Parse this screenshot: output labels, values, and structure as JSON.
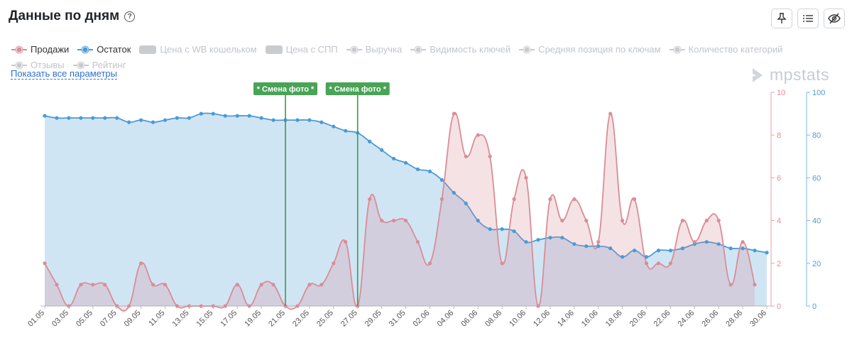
{
  "header": {
    "title": "Данные по дням",
    "help_icon": "?"
  },
  "toolbar": {
    "pin_icon": "pin-icon",
    "list_icon": "list-icon",
    "hide_icon": "eye-off-icon"
  },
  "legend": [
    {
      "label": "Продажи",
      "state": "on",
      "kind": "line",
      "color": "#d98d96"
    },
    {
      "label": "Остаток",
      "state": "on",
      "kind": "line",
      "color": "#4a9bd6"
    },
    {
      "label": "Цена с WB кошельком",
      "state": "off",
      "kind": "box",
      "color": "#c9cbcf"
    },
    {
      "label": "Цена с СПП",
      "state": "off",
      "kind": "box",
      "color": "#c9cbcf"
    },
    {
      "label": "Выручка",
      "state": "off",
      "kind": "line",
      "color": "#c9cbcf"
    },
    {
      "label": "Видимость ключей",
      "state": "off",
      "kind": "line",
      "color": "#c9cbcf"
    },
    {
      "label": "Средняя позиция по ключам",
      "state": "off",
      "kind": "line",
      "color": "#c9cbcf"
    },
    {
      "label": "Количество категорий",
      "state": "off",
      "kind": "line",
      "color": "#c9cbcf"
    },
    {
      "label": "Отзывы",
      "state": "off",
      "kind": "line",
      "color": "#c9cbcf"
    },
    {
      "label": "Рейтинг",
      "state": "off",
      "kind": "line",
      "color": "#c9cbcf"
    }
  ],
  "show_all_label": "Показать все параметры",
  "brand": "mpstats",
  "chart_data": {
    "type": "area",
    "x": [
      "01.05",
      "02.05",
      "03.05",
      "04.05",
      "05.05",
      "06.05",
      "07.05",
      "08.05",
      "09.05",
      "10.05",
      "11.05",
      "12.05",
      "13.05",
      "14.05",
      "15.05",
      "16.05",
      "17.05",
      "18.05",
      "19.05",
      "20.05",
      "21.05",
      "22.05",
      "23.05",
      "24.05",
      "25.05",
      "26.05",
      "27.05",
      "28.05",
      "29.05",
      "30.05",
      "31.05",
      "01.06",
      "02.06",
      "03.06",
      "04.06",
      "05.06",
      "06.06",
      "07.06",
      "08.06",
      "09.06",
      "10.06",
      "11.06",
      "12.06",
      "13.06",
      "14.06",
      "15.06",
      "16.06",
      "17.06",
      "18.06",
      "19.06",
      "20.06",
      "21.06",
      "22.06",
      "23.06",
      "24.06",
      "25.06",
      "26.06",
      "27.06",
      "28.06",
      "29.06",
      "30.06"
    ],
    "tick_labels": [
      "01.05",
      "03.05",
      "05.05",
      "07.05",
      "09.05",
      "11.05",
      "13.05",
      "15.05",
      "17.05",
      "19.05",
      "21.05",
      "23.05",
      "25.05",
      "27.05",
      "29.05",
      "31.05",
      "02.06",
      "04.06",
      "06.06",
      "08.06",
      "10.06",
      "12.06",
      "14.06",
      "16.06",
      "18.06",
      "20.06",
      "22.06",
      "24.06",
      "26.06",
      "28.06",
      "30.06"
    ],
    "series": [
      {
        "name": "Продажи",
        "axis": "left",
        "color": "#d98d96",
        "values": [
          2,
          1,
          0,
          1,
          1,
          1,
          0,
          0,
          2,
          1,
          1,
          0,
          0,
          0,
          0,
          0,
          1,
          0,
          1,
          1,
          0,
          0,
          1,
          1,
          2,
          3,
          0,
          5,
          4,
          4,
          4,
          3,
          2,
          5,
          9,
          7,
          8,
          7,
          2,
          5,
          6,
          0,
          5,
          4,
          5,
          4,
          3,
          9,
          4,
          5,
          2,
          2,
          2,
          4,
          3,
          4,
          4,
          1,
          3,
          1,
          null
        ]
      },
      {
        "name": "Остаток",
        "axis": "right",
        "color": "#4a9bd6",
        "values": [
          89,
          88,
          88,
          88,
          88,
          88,
          88,
          86,
          87,
          86,
          87,
          88,
          88,
          90,
          90,
          89,
          89,
          89,
          88,
          87,
          87,
          87,
          87,
          86,
          84,
          82,
          81,
          77,
          73,
          69,
          67,
          64,
          63,
          59,
          53,
          48,
          40,
          36,
          36,
          35,
          30,
          31,
          32,
          32,
          29,
          28,
          28,
          27,
          23,
          26,
          23,
          26,
          26,
          27,
          29,
          30,
          29,
          27,
          27,
          26,
          25
        ]
      }
    ],
    "y_left": {
      "min": 0,
      "max": 10,
      "ticks": [
        0,
        2,
        4,
        6,
        8,
        10
      ]
    },
    "y_right": {
      "min": 0,
      "max": 100,
      "ticks": [
        0,
        20,
        40,
        60,
        80,
        100
      ]
    },
    "annotations": [
      {
        "label": "* Смена фото *",
        "date": "21.05"
      },
      {
        "label": "* Смена фото *",
        "date": "27.05"
      }
    ]
  }
}
